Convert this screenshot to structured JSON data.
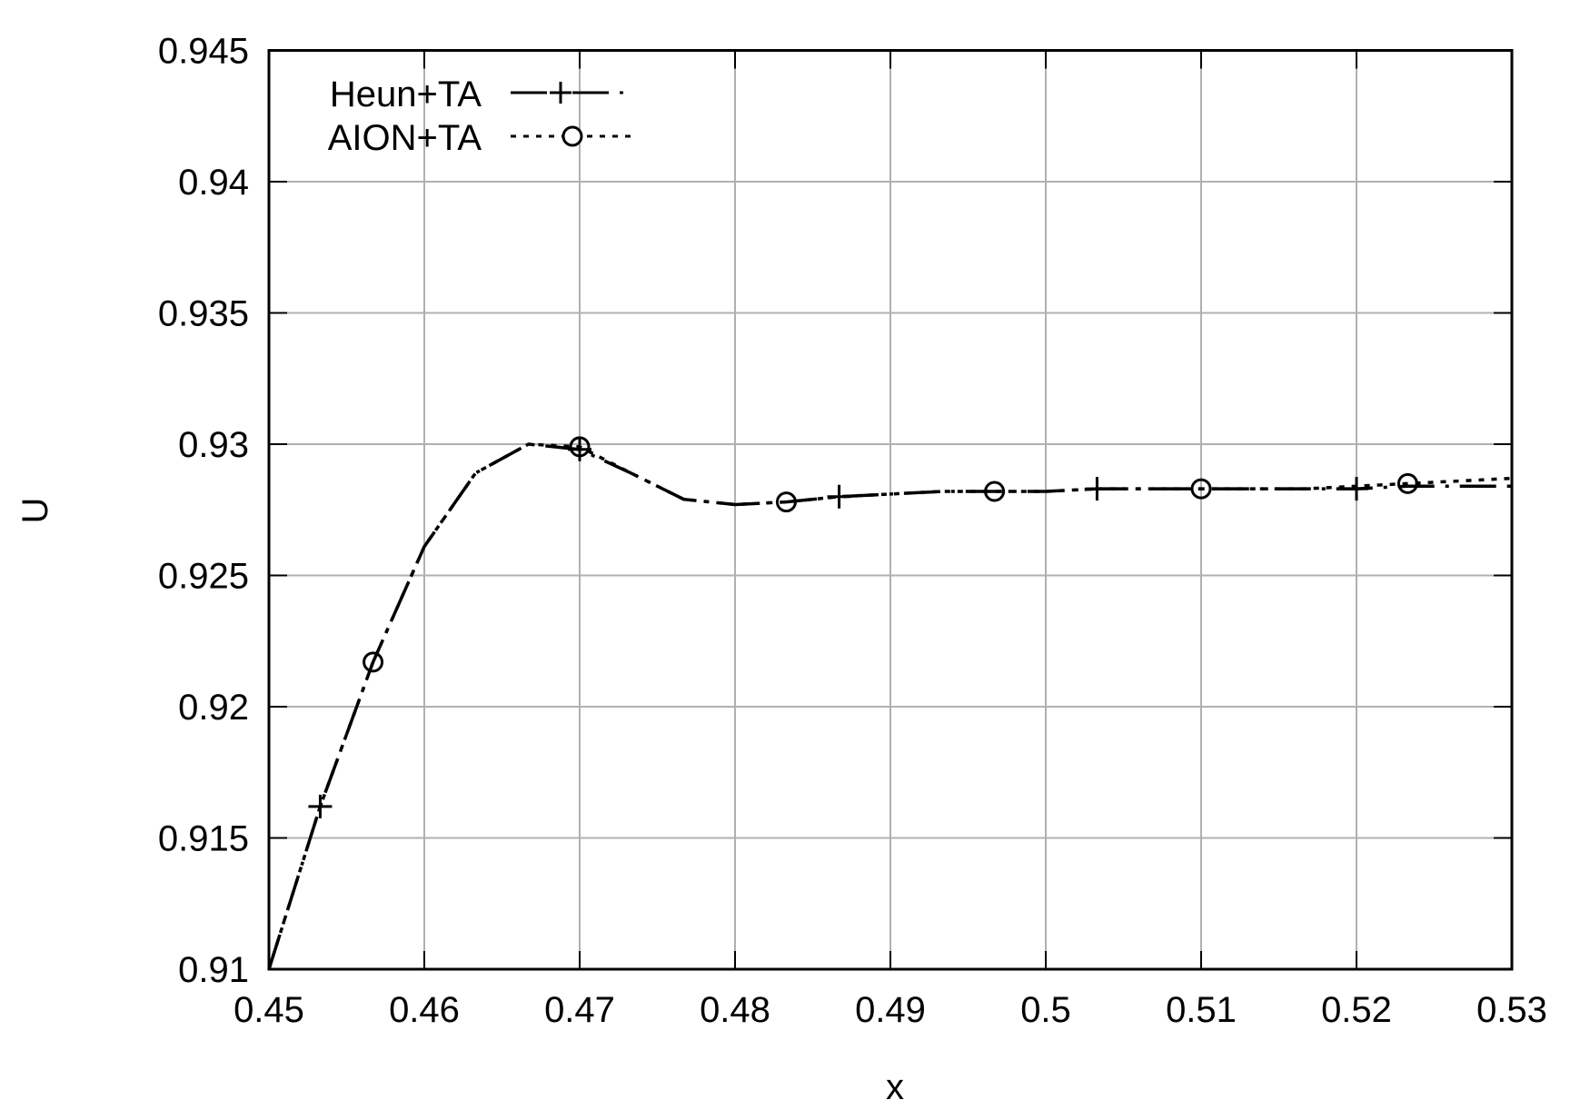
{
  "chart_data": {
    "type": "line",
    "title": "",
    "xlabel": "x",
    "ylabel": "U",
    "xlim": [
      0.45,
      0.53
    ],
    "ylim": [
      0.91,
      0.945
    ],
    "grid": true,
    "legend_position": "top-left",
    "x_ticks": [
      "0.45",
      "0.46",
      "0.47",
      "0.48",
      "0.49",
      "0.5",
      "0.51",
      "0.52",
      "0.53"
    ],
    "y_ticks": [
      "0.91",
      "0.915",
      "0.92",
      "0.925",
      "0.93",
      "0.935",
      "0.94",
      "0.945"
    ],
    "series": [
      {
        "name": "Heun+TA",
        "marker": "plus",
        "dash": "long-dash-dot",
        "x": [
          0.45,
          0.4533,
          0.4567,
          0.46,
          0.4633,
          0.4667,
          0.47,
          0.4733,
          0.4767,
          0.48,
          0.4833,
          0.4867,
          0.49,
          0.4933,
          0.4967,
          0.5,
          0.5033,
          0.5067,
          0.51,
          0.5133,
          0.5167,
          0.52,
          0.5233,
          0.5267,
          0.53
        ],
        "y": [
          0.91,
          0.9162,
          0.9217,
          0.9261,
          0.9289,
          0.93,
          0.9298,
          0.9289,
          0.9279,
          0.9277,
          0.9278,
          0.928,
          0.9281,
          0.9282,
          0.9282,
          0.9282,
          0.9283,
          0.9283,
          0.9283,
          0.9283,
          0.9283,
          0.9283,
          0.9284,
          0.9284,
          0.9284
        ],
        "marker_x": [
          0.4533,
          0.47,
          0.4867,
          0.5033,
          0.52
        ]
      },
      {
        "name": "AION+TA",
        "marker": "circle",
        "dash": "dotted",
        "x": [
          0.45,
          0.4533,
          0.4567,
          0.46,
          0.4633,
          0.4667,
          0.47,
          0.4733,
          0.4767,
          0.48,
          0.4833,
          0.4867,
          0.49,
          0.4933,
          0.4967,
          0.5,
          0.5033,
          0.5067,
          0.51,
          0.5133,
          0.5167,
          0.52,
          0.5233,
          0.5267,
          0.53
        ],
        "y": [
          0.91,
          0.9162,
          0.9217,
          0.9261,
          0.9289,
          0.93,
          0.9299,
          0.9289,
          0.9279,
          0.9277,
          0.9278,
          0.928,
          0.9281,
          0.9282,
          0.9282,
          0.9282,
          0.9283,
          0.9283,
          0.9283,
          0.9283,
          0.9283,
          0.9284,
          0.9285,
          0.9286,
          0.9287
        ],
        "marker_x": [
          0.4567,
          0.47,
          0.4833,
          0.4967,
          0.51,
          0.5233
        ]
      }
    ]
  }
}
